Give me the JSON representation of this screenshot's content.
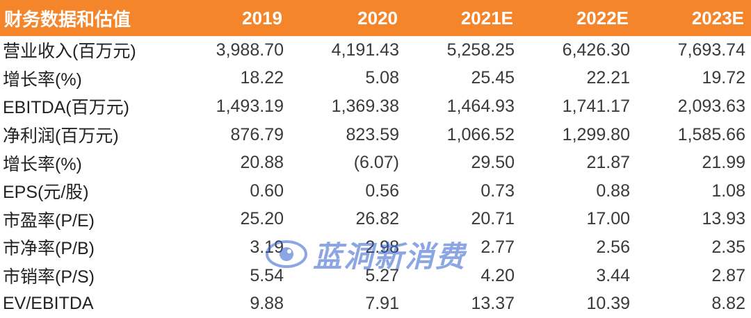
{
  "table": {
    "header": [
      "财务数据和估值",
      "2019",
      "2020",
      "2021E",
      "2022E",
      "2023E"
    ],
    "rows": [
      [
        "营业收入(百万元)",
        "3,988.70",
        "4,191.43",
        "5,258.25",
        "6,426.30",
        "7,693.74"
      ],
      [
        "增长率(%)",
        "18.22",
        "5.08",
        "25.45",
        "22.21",
        "19.72"
      ],
      [
        "EBITDA(百万元)",
        "1,493.19",
        "1,369.38",
        "1,464.93",
        "1,741.17",
        "2,093.63"
      ],
      [
        "净利润(百万元)",
        "876.79",
        "823.59",
        "1,066.52",
        "1,299.80",
        "1,585.66"
      ],
      [
        "增长率(%)",
        "20.88",
        "(6.07)",
        "29.50",
        "21.87",
        "21.99"
      ],
      [
        "EPS(元/股)",
        "0.60",
        "0.56",
        "0.73",
        "0.88",
        "1.08"
      ],
      [
        "市盈率(P/E)",
        "25.20",
        "26.82",
        "20.71",
        "17.00",
        "13.93"
      ],
      [
        "市净率(P/B)",
        "3.19",
        "2.98",
        "2.77",
        "2.56",
        "2.35"
      ],
      [
        "市销率(P/S)",
        "5.54",
        "5.27",
        "4.20",
        "3.44",
        "2.87"
      ],
      [
        "EV/EBITDA",
        "9.88",
        "7.91",
        "13.37",
        "10.39",
        "8.82"
      ]
    ]
  },
  "watermark": {
    "text": "蓝洞新消费",
    "logo_icon": "eye-logo-icon"
  },
  "colors": {
    "header_bg": "#f4852b",
    "header_text": "#ffffff",
    "body_text": "#3a3a3a",
    "watermark": "#2f5fcf"
  }
}
